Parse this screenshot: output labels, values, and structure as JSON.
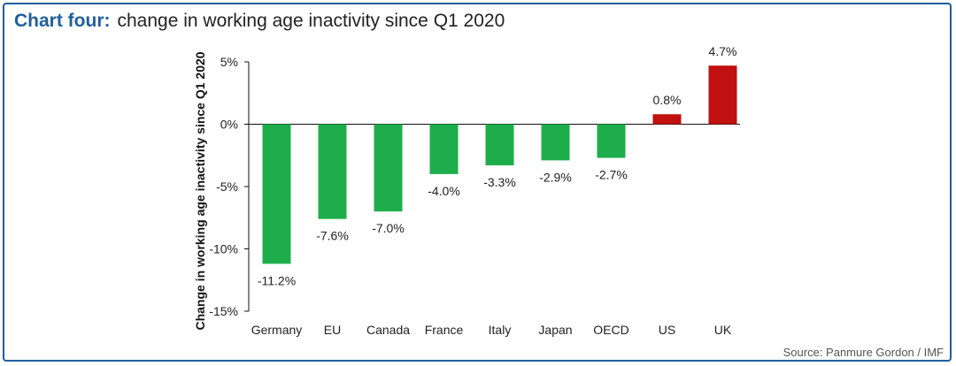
{
  "header": {
    "title_lead": "Chart four:",
    "title_rest": "change in working age inactivity since Q1 2020"
  },
  "footer": {
    "source": "Source: Panmure Gordon / IMF"
  },
  "colors": {
    "frame": "#1f5f9e",
    "negative": "#1dae4b",
    "positive": "#c0100f",
    "axis": "#111111"
  },
  "chart_data": {
    "type": "bar",
    "ylabel": "Change in working age inactivity since Q1 2020",
    "ylim": [
      -15,
      5
    ],
    "yticks": [
      5,
      0,
      -5,
      -10,
      -15
    ],
    "ytick_labels": [
      "5%",
      "0%",
      "-5%",
      "-10%",
      "-15%"
    ],
    "categories": [
      "Germany",
      "EU",
      "Canada",
      "France",
      "Italy",
      "Japan",
      "OECD",
      "US",
      "UK"
    ],
    "values": [
      -11.2,
      -7.6,
      -7.0,
      -4.0,
      -3.3,
      -2.9,
      -2.7,
      0.8,
      4.7
    ],
    "data_labels": [
      "-11.2%",
      "-7.6%",
      "-7.0%",
      "-4.0%",
      "-3.3%",
      "-2.9%",
      "-2.7%",
      "0.8%",
      "4.7%"
    ],
    "grid": false,
    "legend": "none"
  }
}
